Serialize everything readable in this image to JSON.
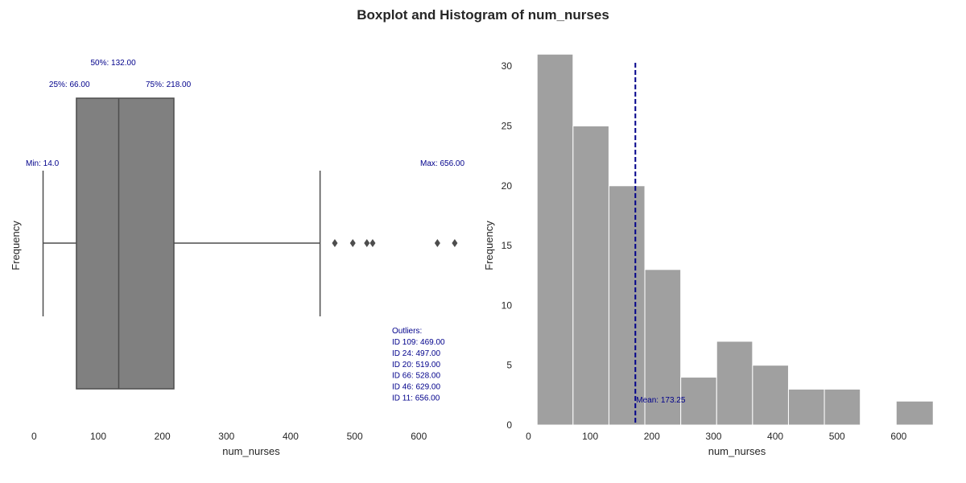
{
  "title": "Boxplot and Histogram of num_nurses",
  "colors": {
    "box": "#808080",
    "hist": "#a0a0a0",
    "line": "#4d4d4d",
    "annotation": "#00008b",
    "text": "#262626"
  },
  "chart_data": [
    {
      "type": "box",
      "xlabel": "num_nurses",
      "ylabel": "Frequency",
      "xlim": [
        -13,
        680
      ],
      "xticks": [
        0,
        100,
        200,
        300,
        400,
        500,
        600
      ],
      "grid": false,
      "stats": {
        "min": 14.0,
        "q1": 66.0,
        "median": 132.0,
        "q3": 218.0,
        "whisker_high": 446,
        "max": 656.0
      },
      "outlier_values": [
        469,
        497,
        519,
        528,
        629,
        656
      ],
      "labels": {
        "q1": "25%: 66.00",
        "median": "50%: 132.00",
        "q3": "75%: 218.00",
        "min": "Min: 14.0",
        "max": "Max: 656.00",
        "outliers_title": "Outliers:",
        "outliers": [
          "ID 109: 469.00",
          "ID 24: 497.00",
          "ID 20: 519.00",
          "ID 66: 528.00",
          "ID 46: 629.00",
          "ID 11: 656.00"
        ]
      }
    },
    {
      "type": "histogram",
      "xlabel": "num_nurses",
      "ylabel": "Frequency",
      "xlim": [
        -15,
        670
      ],
      "ylim": [
        0,
        32.5
      ],
      "xticks": [
        0,
        100,
        200,
        300,
        400,
        500,
        600
      ],
      "yticks": [
        0,
        5,
        10,
        15,
        20,
        25,
        30
      ],
      "grid": false,
      "bin_edges": [
        14.0,
        72.2,
        130.4,
        188.6,
        246.8,
        305.0,
        363.2,
        421.4,
        479.6,
        537.8,
        596.0,
        656.0
      ],
      "counts": [
        31,
        25,
        20,
        13,
        4,
        7,
        5,
        3,
        3,
        0,
        2
      ],
      "mean": 173.25,
      "mean_label": "Mean: 173.25"
    }
  ]
}
